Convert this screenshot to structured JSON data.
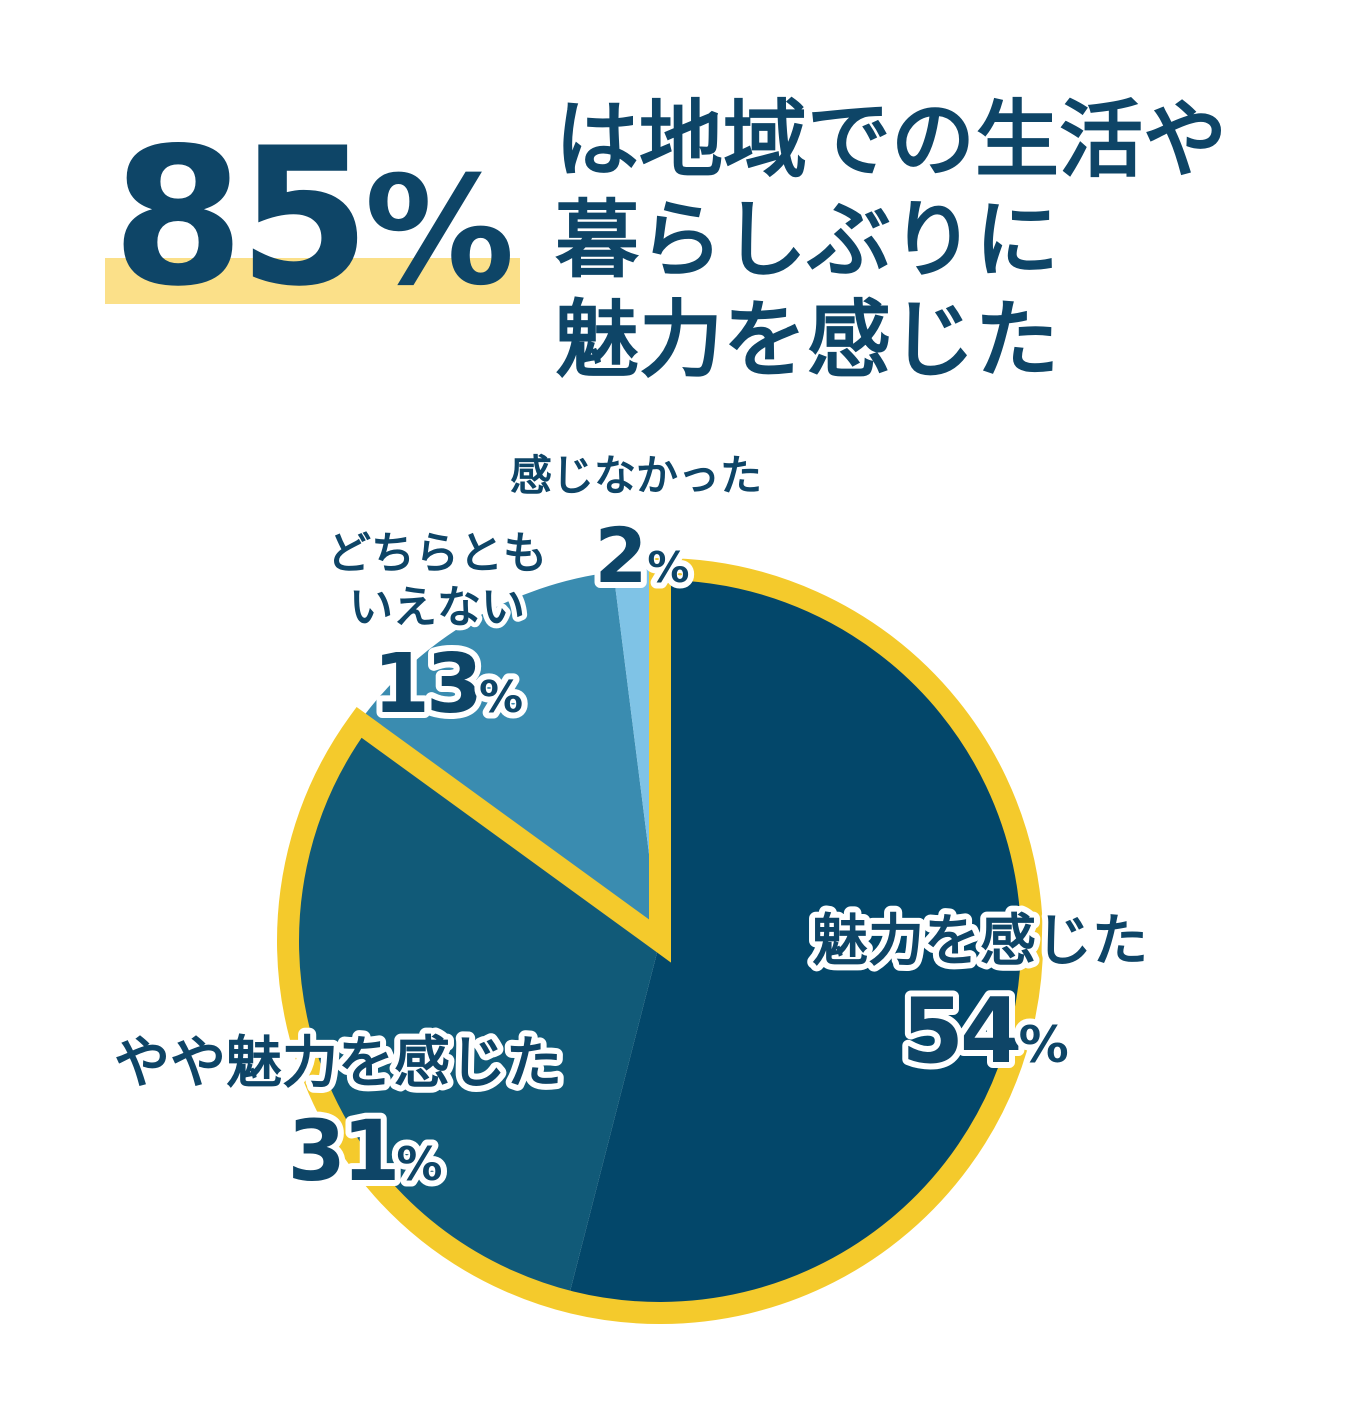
{
  "headline": {
    "percent": "85",
    "percent_unit": "%",
    "lines": [
      "は地域での生活や",
      "暮らしぶりに",
      "魅力を感じた"
    ]
  },
  "colors": {
    "highlight": "#fbe089",
    "text": "#0e4567",
    "ring": "#f4ca2c",
    "slices": [
      "#03476a",
      "#115a78",
      "#3a8cb0",
      "#7fc3e6"
    ]
  },
  "chart_data": {
    "type": "pie",
    "start": "12 o'clock, clockwise",
    "slices": [
      {
        "label": "魅力を感じた",
        "value": 54,
        "value_text": "54",
        "unit": "%"
      },
      {
        "label": "やや魅力を感じた",
        "value": 31,
        "value_text": "31",
        "unit": "%"
      },
      {
        "label_lines": [
          "どちらとも",
          "いえない"
        ],
        "value": 13,
        "value_text": "13",
        "unit": "%"
      },
      {
        "label": "感じなかった",
        "value": 2,
        "value_text": "2",
        "unit": "%"
      }
    ]
  }
}
